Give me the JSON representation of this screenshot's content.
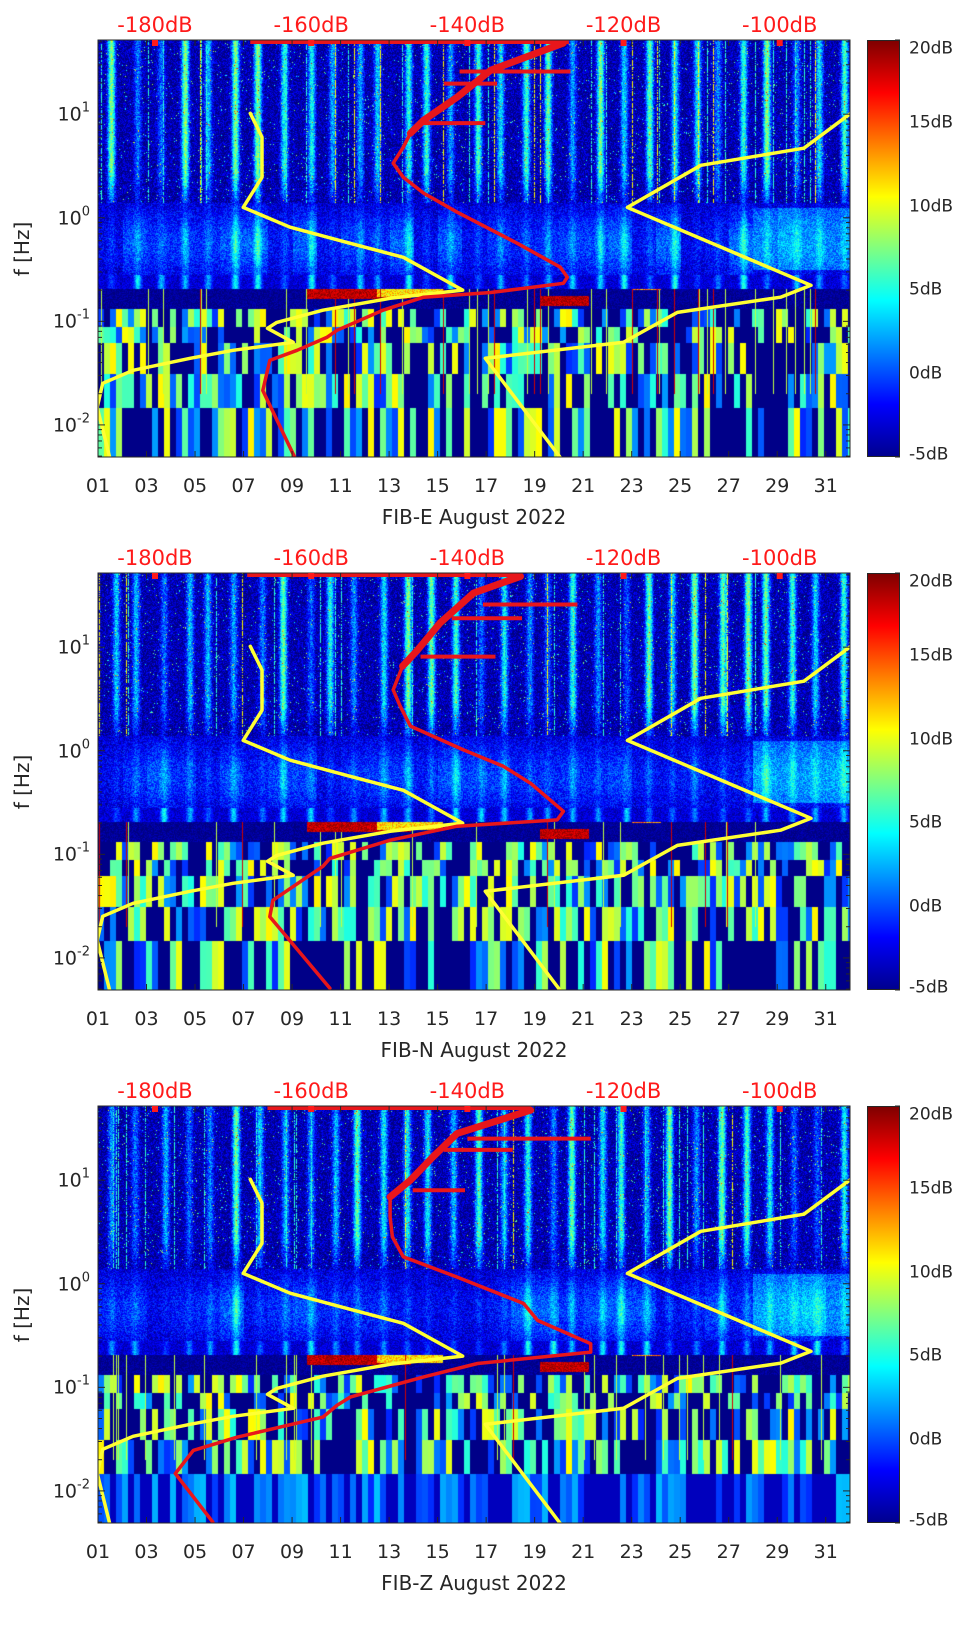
{
  "chart_data": [
    {
      "type": "heatmap",
      "xlabel": "FIB-E August 2022",
      "ylabel": "f [Hz]",
      "xlim": [
        1,
        32
      ],
      "ylim": [
        0.0049,
        52
      ],
      "yscale": "log",
      "xtick_values": [
        1,
        3,
        5,
        7,
        9,
        11,
        13,
        15,
        17,
        19,
        21,
        23,
        25,
        27,
        29,
        31
      ],
      "xtick_labels": [
        "01",
        "03",
        "05",
        "07",
        "09",
        "11",
        "13",
        "15",
        "17",
        "19",
        "21",
        "23",
        "25",
        "27",
        "29",
        "31"
      ],
      "yticks": [
        {
          "value": 10,
          "base": "10",
          "exp": "1"
        },
        {
          "value": 1,
          "base": "10",
          "exp": "0"
        },
        {
          "value": 0.1,
          "base": "10",
          "exp": "-1"
        },
        {
          "value": 0.01,
          "base": "10",
          "exp": "-2"
        }
      ],
      "top_axis": {
        "xlim": [
          -187.3,
          -91
        ],
        "tick_values": [
          -180,
          -160,
          -140,
          -120,
          -100
        ],
        "tick_labels": [
          "-180dB",
          "-160dB",
          "-140dB",
          "-120dB",
          "-100dB"
        ],
        "color": "#ff1a1a"
      },
      "colorbar": {
        "clim": [
          -5,
          20
        ],
        "tick_values": [
          20,
          15,
          10,
          5,
          0,
          -5
        ],
        "tick_labels": [
          "20dB",
          "15dB",
          "10dB",
          "5dB",
          "0dB",
          "-5dB"
        ],
        "colormap": "jet"
      },
      "grid": false,
      "curves": {
        "low_noise_model": {
          "color": "#ffff33",
          "points_db_hz": [
            [
              -185.8,
              0.00485
            ],
            [
              -187.4,
              0.0148
            ],
            [
              -186.7,
              0.0252
            ],
            [
              -182.8,
              0.0337
            ],
            [
              -175.5,
              0.044
            ],
            [
              -170,
              0.0525
            ],
            [
              -162.3,
              0.0627
            ],
            [
              -165.6,
              0.0856
            ],
            [
              -164.4,
              0.0977
            ],
            [
              -158.5,
              0.128
            ],
            [
              -149.9,
              0.167
            ],
            [
              -140.6,
              0.2
            ],
            [
              -148.2,
              0.415
            ],
            [
              -155,
              0.567
            ],
            [
              -162.7,
              0.81
            ],
            [
              -168.7,
              1.26
            ],
            [
              -166.3,
              2.46
            ],
            [
              -166.3,
              6.0
            ],
            [
              -167.8,
              10.2
            ]
          ]
        },
        "high_noise_model": {
          "color": "#ffff33",
          "points_db_hz": [
            [
              -128.1,
              0.00485
            ],
            [
              -137.7,
              0.044
            ],
            [
              -120,
              0.0627
            ],
            [
              -113.1,
              0.122
            ],
            [
              -99.9,
              0.171
            ],
            [
              -96,
              0.223
            ],
            [
              -119.5,
              1.26
            ],
            [
              -110.1,
              3.21
            ],
            [
              -96.9,
              4.69
            ],
            [
              -90.9,
              10.2
            ]
          ]
        },
        "psd": {
          "color": "#e8161b",
          "points_db_hz": [
            [
              -162.1,
              0.00485
            ],
            [
              -166.2,
              0.0215
            ],
            [
              -165.3,
              0.042
            ],
            [
              -161.8,
              0.0525
            ],
            [
              -158,
              0.07
            ],
            [
              -156.7,
              0.082
            ],
            [
              -150.8,
              0.128
            ],
            [
              -145.6,
              0.171
            ],
            [
              -137,
              0.19
            ],
            [
              -127.7,
              0.233
            ],
            [
              -127.2,
              0.266
            ],
            [
              -128.1,
              0.333
            ],
            [
              -133.6,
              0.567
            ],
            [
              -141.3,
              1.13
            ],
            [
              -145.6,
              1.73
            ],
            [
              -148.2,
              2.46
            ],
            [
              -149.5,
              3.36
            ],
            [
              -148.2,
              4.8
            ],
            [
              -147.3,
              6.55
            ],
            [
              -145.6,
              8.75
            ],
            [
              -141.3,
              14.6
            ],
            [
              -137,
              26.6
            ],
            [
              -127.7,
              48.5
            ]
          ],
          "top_segment_db": [
            -167.8,
            -127
          ],
          "spikes": [
            [
              -141,
              25.8,
              -126.8
            ],
            [
              -143,
              19.7,
              -136.2
            ],
            [
              -146,
              8.2,
              -137.7
            ]
          ]
        }
      }
    },
    {
      "type": "heatmap",
      "xlabel": "FIB-N August 2022",
      "ylabel": "f [Hz]",
      "xlim": [
        1,
        32
      ],
      "ylim": [
        0.0049,
        52
      ],
      "yscale": "log",
      "xtick_values": [
        1,
        3,
        5,
        7,
        9,
        11,
        13,
        15,
        17,
        19,
        21,
        23,
        25,
        27,
        29,
        31
      ],
      "xtick_labels": [
        "01",
        "03",
        "05",
        "07",
        "09",
        "11",
        "13",
        "15",
        "17",
        "19",
        "21",
        "23",
        "25",
        "27",
        "29",
        "31"
      ],
      "yticks": [
        {
          "value": 10,
          "base": "10",
          "exp": "1"
        },
        {
          "value": 1,
          "base": "10",
          "exp": "0"
        },
        {
          "value": 0.1,
          "base": "10",
          "exp": "-1"
        },
        {
          "value": 0.01,
          "base": "10",
          "exp": "-2"
        }
      ],
      "top_axis": {
        "xlim": [
          -187.3,
          -91
        ],
        "tick_values": [
          -180,
          -160,
          -140,
          -120,
          -100
        ],
        "tick_labels": [
          "-180dB",
          "-160dB",
          "-140dB",
          "-120dB",
          "-100dB"
        ],
        "color": "#ff1a1a"
      },
      "colorbar": {
        "clim": [
          -5,
          20
        ],
        "tick_values": [
          20,
          15,
          10,
          5,
          0,
          -5
        ],
        "tick_labels": [
          "20dB",
          "15dB",
          "10dB",
          "5dB",
          "0dB",
          "-5dB"
        ],
        "colormap": "jet"
      },
      "grid": false,
      "curves": {
        "low_noise_model": {
          "color": "#ffff33",
          "points_db_hz": [
            [
              -185.8,
              0.00485
            ],
            [
              -187.4,
              0.0148
            ],
            [
              -186.7,
              0.0252
            ],
            [
              -182.8,
              0.0337
            ],
            [
              -175.5,
              0.044
            ],
            [
              -170,
              0.0525
            ],
            [
              -162.3,
              0.0627
            ],
            [
              -165.6,
              0.0856
            ],
            [
              -164.4,
              0.0977
            ],
            [
              -158.5,
              0.128
            ],
            [
              -149.9,
              0.167
            ],
            [
              -140.6,
              0.2
            ],
            [
              -148.2,
              0.415
            ],
            [
              -155,
              0.567
            ],
            [
              -162.7,
              0.81
            ],
            [
              -168.7,
              1.26
            ],
            [
              -166.3,
              2.46
            ],
            [
              -166.3,
              6.0
            ],
            [
              -167.8,
              10.2
            ]
          ]
        },
        "high_noise_model": {
          "color": "#ffff33",
          "points_db_hz": [
            [
              -128.1,
              0.00485
            ],
            [
              -137.7,
              0.044
            ],
            [
              -120,
              0.0627
            ],
            [
              -113.1,
              0.122
            ],
            [
              -99.9,
              0.171
            ],
            [
              -96,
              0.223
            ],
            [
              -119.5,
              1.26
            ],
            [
              -110.1,
              3.21
            ],
            [
              -96.9,
              4.69
            ],
            [
              -90.9,
              10.2
            ]
          ]
        },
        "psd": {
          "color": "#e8161b",
          "points_db_hz": [
            [
              -157.6,
              0.0051
            ],
            [
              -165.3,
              0.025
            ],
            [
              -164.9,
              0.036
            ],
            [
              -158.5,
              0.0766
            ],
            [
              -157.6,
              0.0914
            ],
            [
              -149.9,
              0.137
            ],
            [
              -141.3,
              0.187
            ],
            [
              -128.5,
              0.215
            ],
            [
              -127.7,
              0.26
            ],
            [
              -131.9,
              0.485
            ],
            [
              -135.4,
              0.708
            ],
            [
              -140.5,
              1.02
            ],
            [
              -147.3,
              1.73
            ],
            [
              -148.6,
              2.69
            ],
            [
              -149.5,
              3.87
            ],
            [
              -148.3,
              6.55
            ],
            [
              -146.4,
              9.35
            ],
            [
              -143.5,
              17.1
            ],
            [
              -139.2,
              33.3
            ],
            [
              -133.2,
              48.2
            ]
          ],
          "top_segment_db": [
            -168.2,
            -133.2
          ],
          "spikes": [
            [
              -138,
              25.8,
              -125.9
            ],
            [
              -142,
              19,
              -133
            ],
            [
              -146,
              8.1,
              -136.4
            ]
          ]
        }
      }
    },
    {
      "type": "heatmap",
      "xlabel": "FIB-Z August 2022",
      "ylabel": "f [Hz]",
      "xlim": [
        1,
        32
      ],
      "ylim": [
        0.0049,
        52
      ],
      "yscale": "log",
      "xtick_values": [
        1,
        3,
        5,
        7,
        9,
        11,
        13,
        15,
        17,
        19,
        21,
        23,
        25,
        27,
        29,
        31
      ],
      "xtick_labels": [
        "01",
        "03",
        "05",
        "07",
        "09",
        "11",
        "13",
        "15",
        "17",
        "19",
        "21",
        "23",
        "25",
        "27",
        "29",
        "31"
      ],
      "yticks": [
        {
          "value": 10,
          "base": "10",
          "exp": "1"
        },
        {
          "value": 1,
          "base": "10",
          "exp": "0"
        },
        {
          "value": 0.1,
          "base": "10",
          "exp": "-1"
        },
        {
          "value": 0.01,
          "base": "10",
          "exp": "-2"
        }
      ],
      "top_axis": {
        "xlim": [
          -187.3,
          -91
        ],
        "tick_values": [
          -180,
          -160,
          -140,
          -120,
          -100
        ],
        "tick_labels": [
          "-180dB",
          "-160dB",
          "-140dB",
          "-120dB",
          "-100dB"
        ],
        "color": "#ff1a1a"
      },
      "colorbar": {
        "clim": [
          -5,
          20
        ],
        "tick_values": [
          20,
          15,
          10,
          5,
          0,
          -5
        ],
        "tick_labels": [
          "20dB",
          "15dB",
          "10dB",
          "5dB",
          "0dB",
          "-5dB"
        ],
        "colormap": "jet"
      },
      "grid": false,
      "curves": {
        "low_noise_model": {
          "color": "#ffff33",
          "points_db_hz": [
            [
              -185.8,
              0.00485
            ],
            [
              -187.4,
              0.0148
            ],
            [
              -186.7,
              0.0252
            ],
            [
              -182.8,
              0.0337
            ],
            [
              -175.5,
              0.044
            ],
            [
              -170,
              0.0525
            ],
            [
              -162.3,
              0.0627
            ],
            [
              -165.6,
              0.0856
            ],
            [
              -164.4,
              0.0977
            ],
            [
              -158.5,
              0.128
            ],
            [
              -149.9,
              0.167
            ],
            [
              -140.6,
              0.2
            ],
            [
              -148.2,
              0.415
            ],
            [
              -155,
              0.567
            ],
            [
              -162.7,
              0.81
            ],
            [
              -168.7,
              1.26
            ],
            [
              -166.3,
              2.46
            ],
            [
              -166.3,
              6.0
            ],
            [
              -167.8,
              10.2
            ]
          ]
        },
        "high_noise_model": {
          "color": "#ffff33",
          "points_db_hz": [
            [
              -128.1,
              0.00485
            ],
            [
              -137.7,
              0.044
            ],
            [
              -120,
              0.0627
            ],
            [
              -113.1,
              0.122
            ],
            [
              -99.9,
              0.171
            ],
            [
              -96,
              0.223
            ],
            [
              -119.5,
              1.26
            ],
            [
              -110.1,
              3.21
            ],
            [
              -96.9,
              4.69
            ],
            [
              -90.9,
              10.2
            ]
          ]
        },
        "psd": {
          "color": "#e8161b",
          "points_db_hz": [
            [
              -172.6,
              0.005
            ],
            [
              -177.4,
              0.0147
            ],
            [
              -175.1,
              0.0246
            ],
            [
              -169.5,
              0.033
            ],
            [
              -158.5,
              0.0516
            ],
            [
              -156.7,
              0.067
            ],
            [
              -155,
              0.0805
            ],
            [
              -145.6,
              0.126
            ],
            [
              -138.7,
              0.17
            ],
            [
              -124.2,
              0.219
            ],
            [
              -124.2,
              0.264
            ],
            [
              -131,
              0.443
            ],
            [
              -132.8,
              0.644
            ],
            [
              -141.3,
              1.16
            ],
            [
              -148.2,
              1.82
            ],
            [
              -149.6,
              2.83
            ],
            [
              -149.9,
              4.42
            ],
            [
              -149.9,
              6.9
            ],
            [
              -147.3,
              10
            ],
            [
              -144.4,
              16.8
            ],
            [
              -141.3,
              28.3
            ],
            [
              -131.9,
              47.4
            ]
          ],
          "top_segment_db": [
            -165.6,
            -131.9
          ],
          "spikes": [
            [
              -140,
              25.2,
              -124.2
            ],
            [
              -143,
              19.6,
              -134.2
            ],
            [
              -147,
              8.0,
              -140.3
            ]
          ]
        }
      }
    }
  ]
}
